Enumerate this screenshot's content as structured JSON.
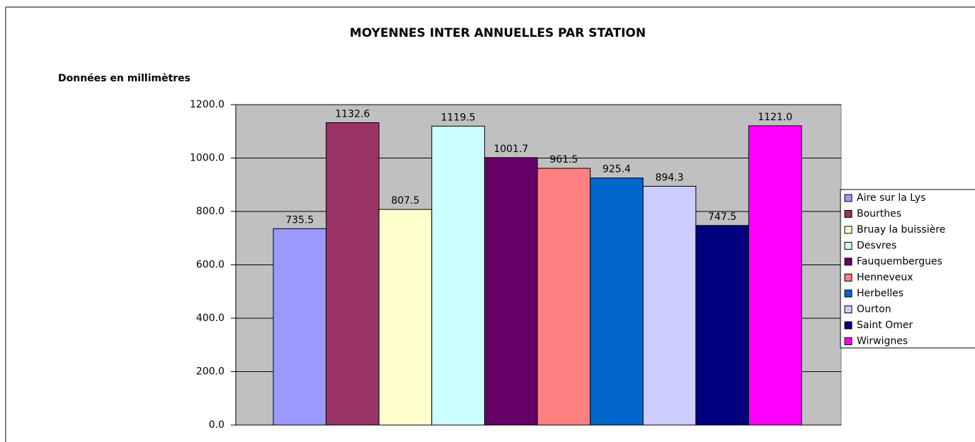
{
  "chart_data": {
    "type": "bar",
    "title": "MOYENNES INTER ANNUELLES PAR STATION",
    "y_label": "Données en millimètres",
    "series": [
      {
        "name": "Aire sur la Lys",
        "color": "#9999ff",
        "values": [
          735.5
        ]
      },
      {
        "name": "Bourthes",
        "color": "#993366",
        "values": [
          1132.6
        ]
      },
      {
        "name": "Bruay la buissière",
        "color": "#ffffcc",
        "values": [
          807.5
        ]
      },
      {
        "name": "Desvres",
        "color": "#ccffff",
        "values": [
          1119.5
        ]
      },
      {
        "name": "Fauquembergues",
        "color": "#660066",
        "values": [
          1001.7
        ]
      },
      {
        "name": "Henneveux",
        "color": "#ff8080",
        "values": [
          961.5
        ]
      },
      {
        "name": "Herbelles",
        "color": "#0066cc",
        "values": [
          925.4
        ]
      },
      {
        "name": "Ourton",
        "color": "#ccccff",
        "values": [
          894.3
        ]
      },
      {
        "name": "Saint Omer",
        "color": "#000080",
        "values": [
          747.5
        ]
      },
      {
        "name": "Wirwignes",
        "color": "#ff00ff",
        "values": [
          1121.0
        ],
        "value_labels": [
          "1121.0"
        ]
      }
    ],
    "ylim": [
      0,
      1200
    ],
    "yticks": [
      {
        "value": 0,
        "label": "0.0"
      },
      {
        "value": 200,
        "label": "200.0"
      },
      {
        "value": 400,
        "label": "400.0"
      },
      {
        "value": 600,
        "label": "600.0"
      },
      {
        "value": 800,
        "label": "800.0"
      },
      {
        "value": 1000,
        "label": "1000.0"
      },
      {
        "value": 1200,
        "label": "1200.0"
      }
    ],
    "grid": true,
    "legend": "right",
    "plot_background": "#c0c0c0"
  }
}
